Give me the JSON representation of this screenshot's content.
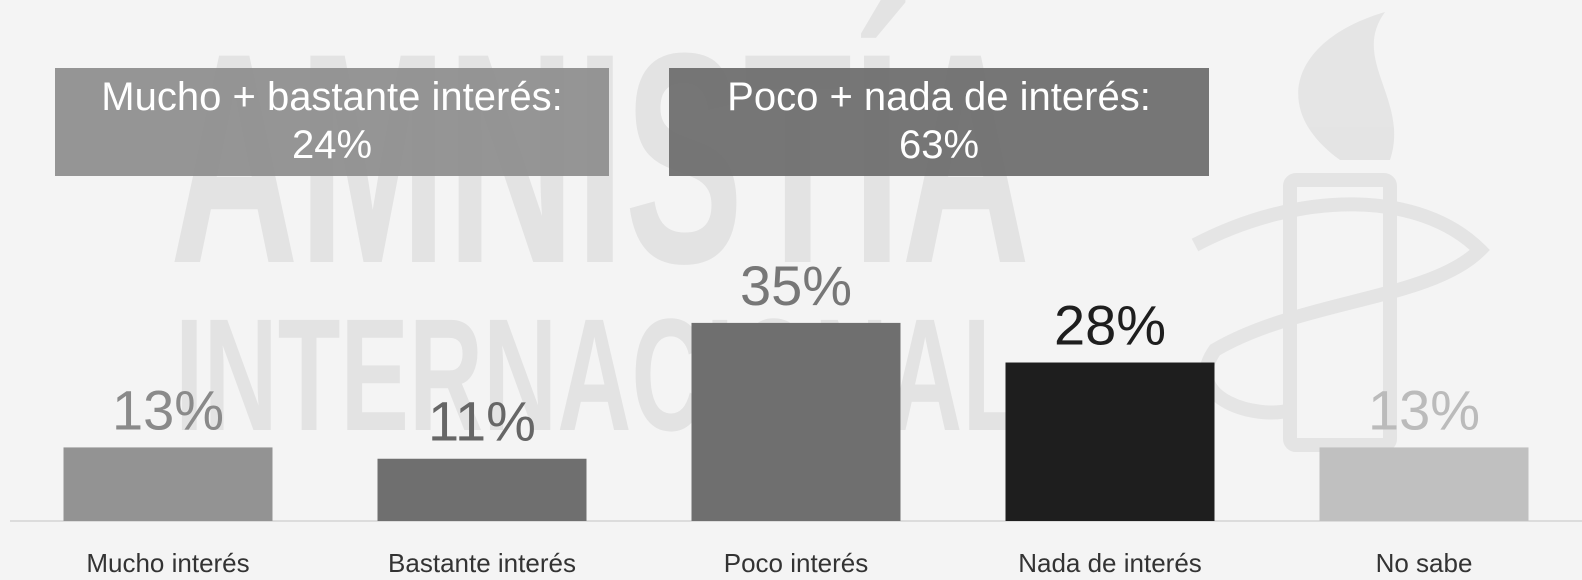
{
  "chart_data": {
    "type": "bar",
    "watermark": [
      "AMNISTÍA",
      "INTERNACIONAL"
    ],
    "annotations": [
      {
        "lines": [
          "Mucho + bastante interés:",
          "24%"
        ],
        "color": "#8f8f8f"
      },
      {
        "lines": [
          "Poco + nada de interés:",
          "63%"
        ],
        "color": "#6f6f6f"
      }
    ],
    "categories": [
      "Mucho interés",
      "Bastante interés",
      "Poco interés",
      "Nada de interés",
      "No sabe"
    ],
    "values": [
      13,
      11,
      35,
      28,
      13
    ],
    "value_labels": [
      "13%",
      "11%",
      "35%",
      "28%",
      "13%"
    ],
    "colors": [
      "#939393",
      "#6f6f6f",
      "#6f6f6f",
      "#1e1e1e",
      "#c0c0c0"
    ],
    "label_colors": [
      "#8a8a8a",
      "#666666",
      "#777777",
      "#1e1e1e",
      "#bbbbbb"
    ]
  }
}
